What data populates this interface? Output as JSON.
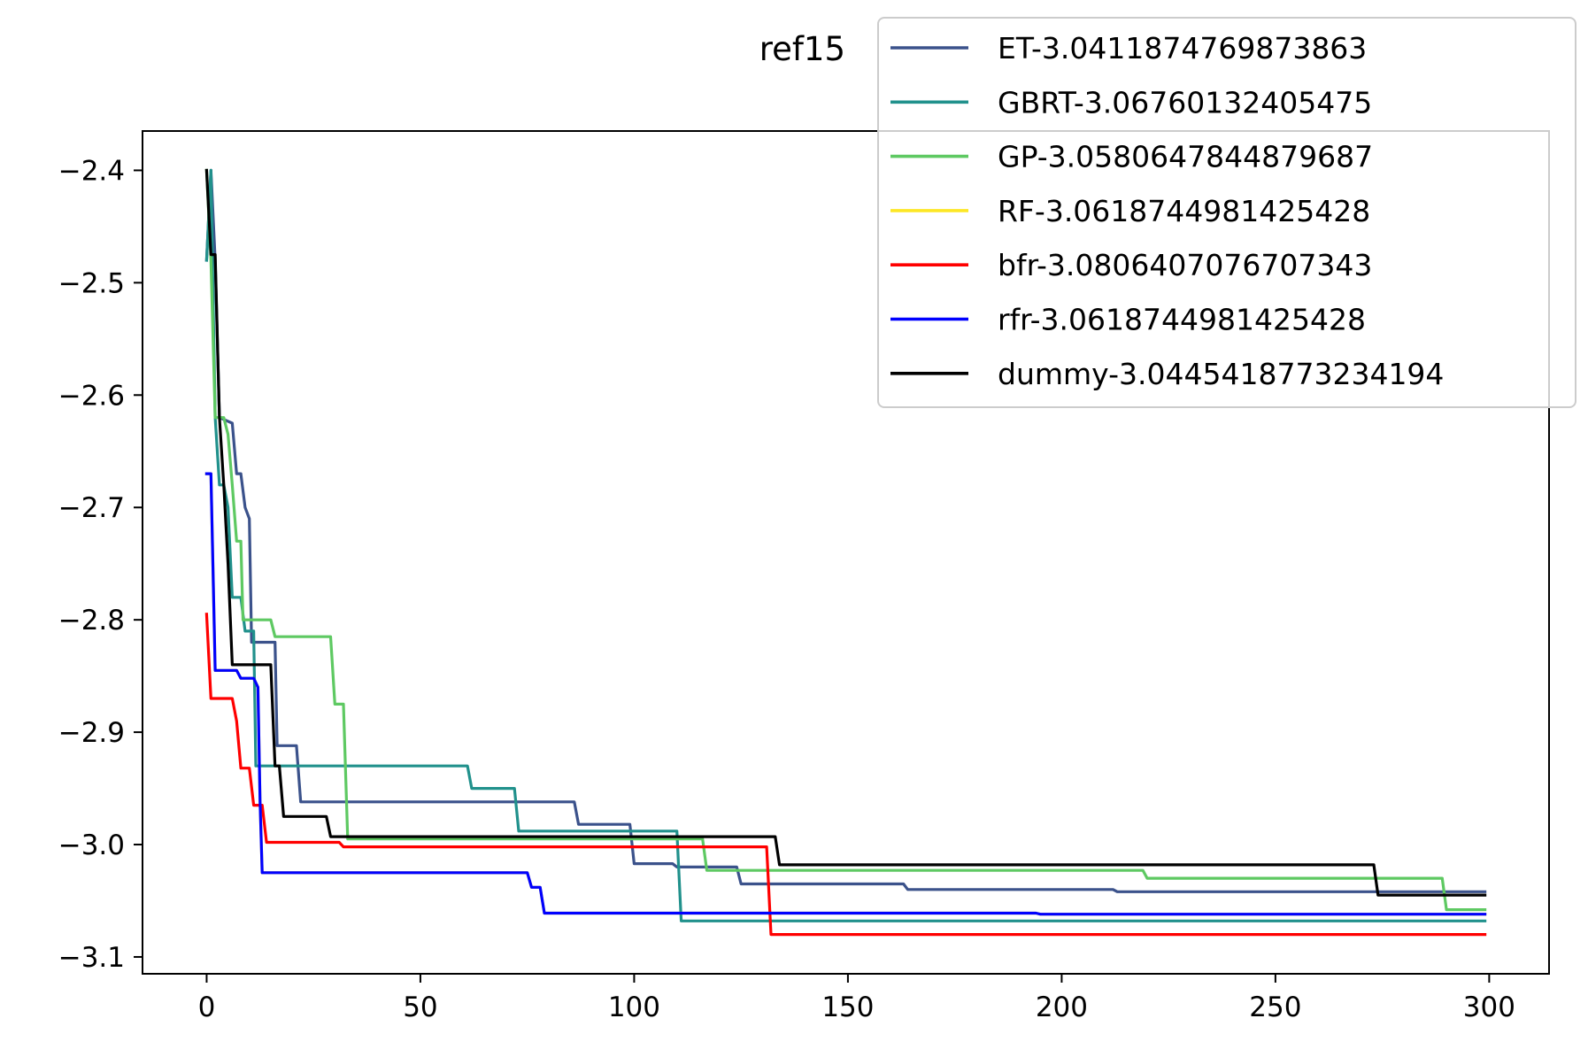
{
  "chart_data": {
    "type": "line",
    "title": "ref15",
    "xlabel": "",
    "ylabel": "",
    "xlim": [
      -15,
      314
    ],
    "ylim": [
      -3.115,
      -2.365
    ],
    "xticks": [
      0,
      50,
      100,
      150,
      200,
      250,
      300
    ],
    "xtick_labels": [
      "0",
      "50",
      "100",
      "150",
      "200",
      "250",
      "300"
    ],
    "yticks": [
      -2.4,
      -2.5,
      -2.6,
      -2.7,
      -2.8,
      -2.9,
      -3.0,
      -3.1
    ],
    "ytick_labels": [
      "−2.4",
      "−2.5",
      "−2.6",
      "−2.7",
      "−2.8",
      "−2.9",
      "−3.0",
      "−3.1"
    ],
    "grid": false,
    "legend_position": "top-right",
    "series": [
      {
        "name": "ET-3.0411874769873863",
        "color": "#3b528b",
        "points": [
          [
            0,
            -2.48
          ],
          [
            1,
            -2.4
          ],
          [
            2,
            -2.48
          ],
          [
            3,
            -2.62
          ],
          [
            6,
            -2.625
          ],
          [
            7,
            -2.67
          ],
          [
            8,
            -2.67
          ],
          [
            9,
            -2.7
          ],
          [
            10,
            -2.71
          ],
          [
            10.5,
            -2.82
          ],
          [
            16,
            -2.82
          ],
          [
            16.5,
            -2.912
          ],
          [
            21,
            -2.912
          ],
          [
            22,
            -2.962
          ],
          [
            86,
            -2.962
          ],
          [
            87,
            -2.982
          ],
          [
            99,
            -2.982
          ],
          [
            100,
            -3.017
          ],
          [
            109,
            -3.017
          ],
          [
            110,
            -3.02
          ],
          [
            124,
            -3.02
          ],
          [
            125,
            -3.035
          ],
          [
            163,
            -3.035
          ],
          [
            164,
            -3.04
          ],
          [
            212,
            -3.04
          ],
          [
            213,
            -3.042
          ],
          [
            299,
            -3.042
          ]
        ]
      },
      {
        "name": "GBRT-3.06760132405475",
        "color": "#21918c",
        "points": [
          [
            0,
            -2.48
          ],
          [
            1,
            -2.4
          ],
          [
            2,
            -2.62
          ],
          [
            3,
            -2.68
          ],
          [
            4,
            -2.68
          ],
          [
            5,
            -2.7
          ],
          [
            6,
            -2.78
          ],
          [
            8,
            -2.78
          ],
          [
            9,
            -2.81
          ],
          [
            11,
            -2.81
          ],
          [
            11.5,
            -2.93
          ],
          [
            61,
            -2.93
          ],
          [
            62,
            -2.95
          ],
          [
            72,
            -2.95
          ],
          [
            73,
            -2.988
          ],
          [
            110,
            -2.988
          ],
          [
            111,
            -3.068
          ],
          [
            299,
            -3.068
          ]
        ]
      },
      {
        "name": "GP-3.0580647844879687",
        "color": "#5ec962",
        "points": [
          [
            0,
            -2.4
          ],
          [
            1,
            -2.48
          ],
          [
            2,
            -2.62
          ],
          [
            4,
            -2.62
          ],
          [
            5,
            -2.635
          ],
          [
            6,
            -2.68
          ],
          [
            7,
            -2.73
          ],
          [
            8,
            -2.73
          ],
          [
            8.5,
            -2.8
          ],
          [
            15,
            -2.8
          ],
          [
            16,
            -2.815
          ],
          [
            29,
            -2.815
          ],
          [
            30,
            -2.875
          ],
          [
            32,
            -2.875
          ],
          [
            33,
            -2.995
          ],
          [
            116,
            -2.995
          ],
          [
            117,
            -3.023
          ],
          [
            219,
            -3.023
          ],
          [
            220,
            -3.03
          ],
          [
            289,
            -3.03
          ],
          [
            290,
            -3.058
          ],
          [
            299,
            -3.058
          ]
        ]
      },
      {
        "name": "RF-3.0618744981425428",
        "color": "#fde725",
        "points": [
          [
            0,
            -2.67
          ],
          [
            1,
            -2.67
          ],
          [
            2,
            -2.845
          ],
          [
            7,
            -2.845
          ],
          [
            8,
            -2.852
          ],
          [
            11,
            -2.852
          ],
          [
            12,
            -2.86
          ],
          [
            12.5,
            -2.962
          ],
          [
            13,
            -3.025
          ],
          [
            75,
            -3.025
          ],
          [
            76,
            -3.038
          ],
          [
            78,
            -3.038
          ],
          [
            79,
            -3.061
          ],
          [
            194,
            -3.061
          ],
          [
            195,
            -3.062
          ],
          [
            299,
            -3.062
          ]
        ]
      },
      {
        "name": "bfr-3.0806407076707343",
        "color": "#ff0000",
        "points": [
          [
            0,
            -2.795
          ],
          [
            1,
            -2.87
          ],
          [
            6,
            -2.87
          ],
          [
            7,
            -2.89
          ],
          [
            8,
            -2.932
          ],
          [
            10,
            -2.932
          ],
          [
            11,
            -2.965
          ],
          [
            13,
            -2.965
          ],
          [
            14,
            -2.998
          ],
          [
            31,
            -2.998
          ],
          [
            32,
            -3.002
          ],
          [
            131,
            -3.002
          ],
          [
            132,
            -3.08
          ],
          [
            299,
            -3.08
          ]
        ]
      },
      {
        "name": "rfr-3.0618744981425428",
        "color": "#0000ff",
        "points": [
          [
            0,
            -2.67
          ],
          [
            1,
            -2.67
          ],
          [
            2,
            -2.845
          ],
          [
            7,
            -2.845
          ],
          [
            8,
            -2.852
          ],
          [
            11,
            -2.852
          ],
          [
            12,
            -2.86
          ],
          [
            12.5,
            -2.962
          ],
          [
            13,
            -3.025
          ],
          [
            75,
            -3.025
          ],
          [
            76,
            -3.038
          ],
          [
            78,
            -3.038
          ],
          [
            79,
            -3.061
          ],
          [
            194,
            -3.061
          ],
          [
            195,
            -3.062
          ],
          [
            299,
            -3.062
          ]
        ]
      },
      {
        "name": "dummy-3.0445418773234194",
        "color": "#000000",
        "points": [
          [
            0,
            -2.4
          ],
          [
            1,
            -2.475
          ],
          [
            2,
            -2.475
          ],
          [
            3,
            -2.62
          ],
          [
            4,
            -2.68
          ],
          [
            5,
            -2.75
          ],
          [
            6,
            -2.84
          ],
          [
            15,
            -2.84
          ],
          [
            16,
            -2.93
          ],
          [
            17,
            -2.93
          ],
          [
            18,
            -2.975
          ],
          [
            28,
            -2.975
          ],
          [
            29,
            -2.993
          ],
          [
            133,
            -2.993
          ],
          [
            134,
            -3.018
          ],
          [
            273,
            -3.018
          ],
          [
            274,
            -3.045
          ],
          [
            299,
            -3.045
          ]
        ]
      }
    ]
  }
}
